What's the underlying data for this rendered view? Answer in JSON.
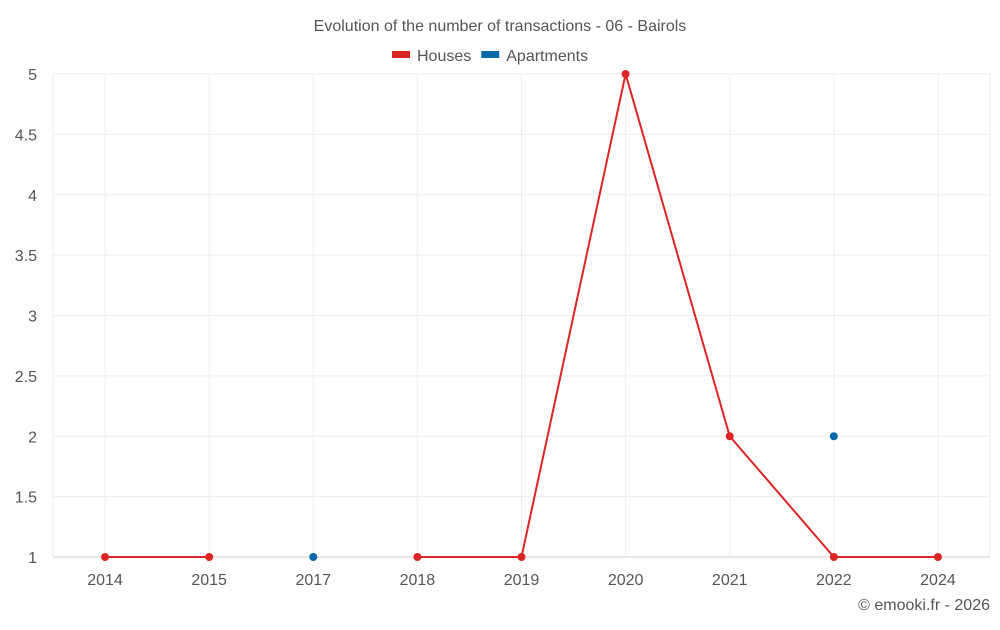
{
  "chart_data": {
    "type": "line",
    "title": "Evolution of the number of transactions - 06 - Bairols",
    "categories": [
      "2014",
      "2015",
      "2017",
      "2018",
      "2019",
      "2020",
      "2021",
      "2022",
      "2024"
    ],
    "series": [
      {
        "name": "Houses",
        "color": "#dc2626",
        "values": [
          1,
          1,
          null,
          1,
          1,
          5,
          2,
          1,
          1
        ]
      },
      {
        "name": "Apartments",
        "color": "#0868a8",
        "values": [
          null,
          null,
          1,
          null,
          null,
          null,
          null,
          2,
          null
        ]
      }
    ],
    "yticks": [
      "1",
      "1.5",
      "2",
      "2.5",
      "3",
      "3.5",
      "4",
      "4.5",
      "5"
    ],
    "ylim": [
      1,
      5
    ],
    "grid": true,
    "legend": "top-center",
    "credit": "© emooki.fr - 2026"
  }
}
